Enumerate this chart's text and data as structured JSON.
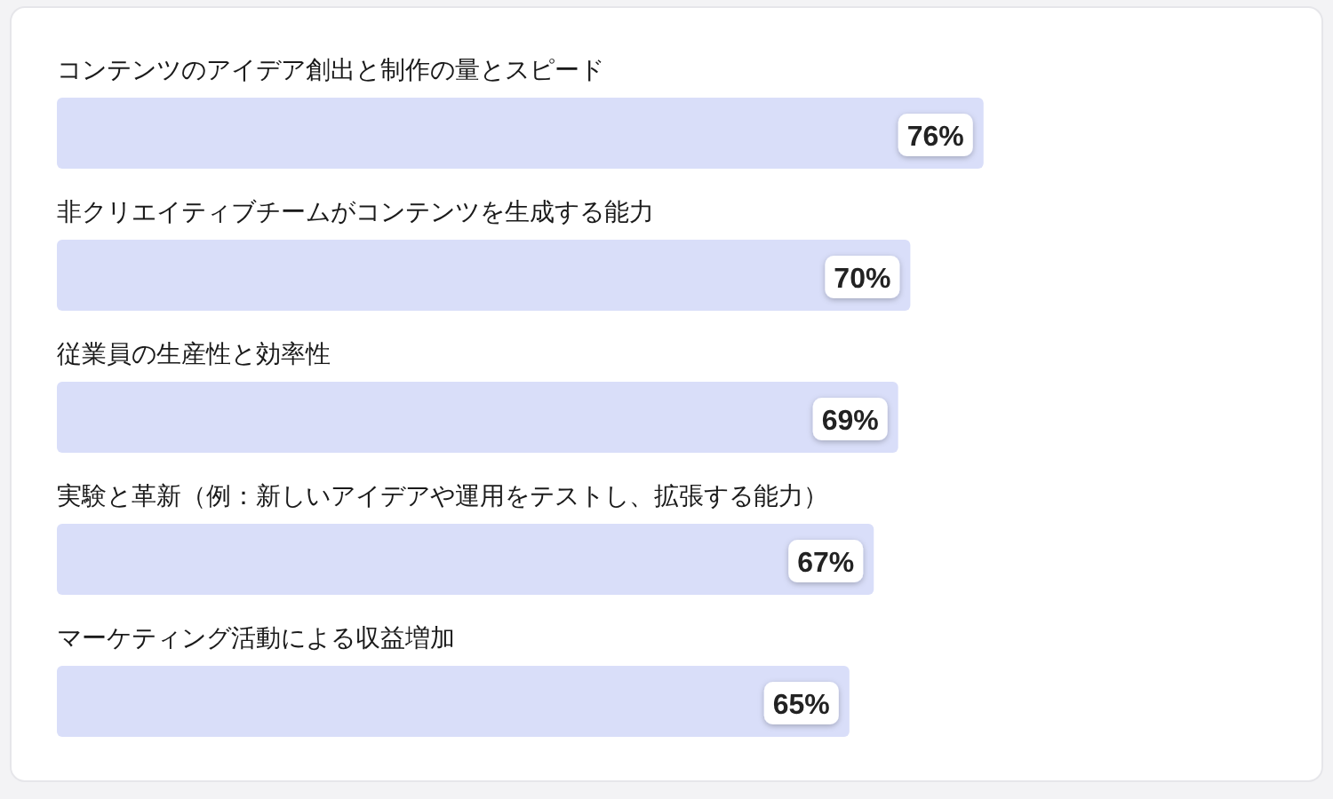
{
  "chart_data": {
    "type": "bar",
    "orientation": "horizontal",
    "categories": [
      "コンテンツのアイデア創出と制作の量とスピード",
      "非クリエイティブチームがコンテンツを生成する能力",
      "従業員の生産性と効率性",
      "実験と革新（例：新しいアイデアや運用をテストし、拡張する能力）",
      "マーケティング活動による収益増加"
    ],
    "values": [
      76,
      70,
      69,
      67,
      65
    ],
    "value_labels": [
      "76%",
      "70%",
      "69%",
      "67%",
      "65%"
    ],
    "color": "#d9def9"
  }
}
